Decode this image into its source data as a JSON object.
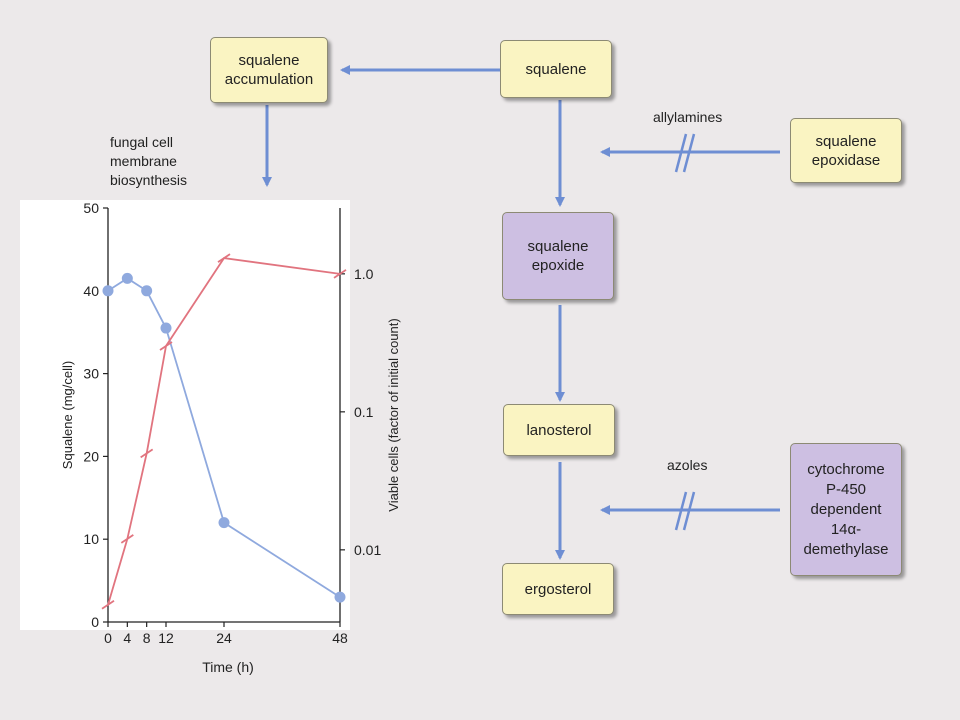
{
  "boxes": {
    "squalene": "squalene",
    "squalene_accumulation": "squalene accumulation",
    "squalene_epoxidase": "squalene epoxidase",
    "squalene_epoxide": "squalene epoxide",
    "lanosterol": "lanosterol",
    "cytochrome": "cytochrome P-450 dependent 14α-demethylase",
    "ergosterol": "ergosterol"
  },
  "labels": {
    "allylamines": "allylamines",
    "azoles": "azoles",
    "fungal_cell_membrane_biosynthesis": "fungal cell membrane biosynthesis"
  },
  "colors": {
    "arrow": "#6e8ed3",
    "yellow_box": "#faf4c2",
    "purple_box": "#cdbfe2",
    "squalene_line": "#8fa9de",
    "viable_line": "#e1747f"
  },
  "chart_data": {
    "type": "line",
    "xlabel": "Time (h)",
    "x_ticks": [
      0,
      4,
      8,
      12,
      24,
      48
    ],
    "y_left": {
      "label": "Squalene (mg/cell)",
      "range": [
        0,
        50
      ],
      "ticks": [
        0,
        10,
        20,
        30,
        40,
        50
      ]
    },
    "y_right": {
      "label": "Viable cells (factor of initial count)",
      "scale": "log",
      "range": [
        0.003,
        3
      ],
      "ticks": [
        0.01,
        0.1,
        1.0
      ],
      "tick_labels": [
        "0.01",
        "0.1",
        "1.0"
      ]
    },
    "series": [
      {
        "axis": "left",
        "marker": "circle",
        "color": "#8fa9de",
        "x": [
          0,
          4,
          8,
          12,
          24,
          48
        ],
        "y": [
          40,
          41.5,
          40,
          35.5,
          12,
          3
        ]
      },
      {
        "axis": "right",
        "marker": "tick",
        "color": "#e1747f",
        "x": [
          0,
          4,
          8,
          12,
          24,
          48
        ],
        "y": [
          0.004,
          0.012,
          0.05,
          0.3,
          1.3,
          1.0
        ]
      }
    ]
  }
}
